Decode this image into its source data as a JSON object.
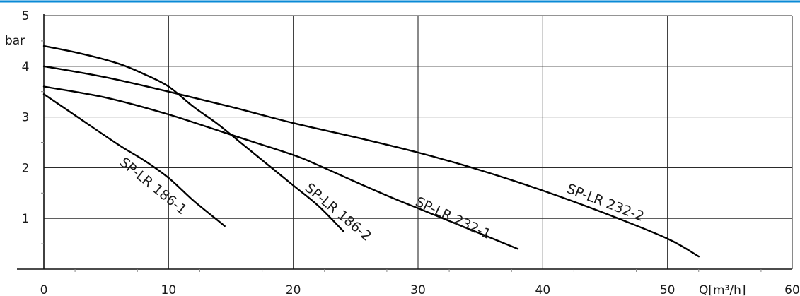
{
  "chart_data": {
    "type": "line",
    "xlabel": "Q[m³/h]",
    "ylabel": "bar",
    "xlim": [
      0,
      60
    ],
    "ylim": [
      0,
      5
    ],
    "x_ticks": [
      "0",
      "10",
      "20",
      "30",
      "40",
      "50",
      "60"
    ],
    "y_ticks": [
      "1",
      "2",
      "3",
      "4",
      "5"
    ],
    "grid": true,
    "accent_color": "#0a8ad6",
    "series": [
      {
        "name": "SP-LR 186-1",
        "x": [
          0,
          3,
          6,
          8,
          10,
          12,
          14,
          14.5
        ],
        "y": [
          3.45,
          2.95,
          2.45,
          2.15,
          1.8,
          1.35,
          0.95,
          0.85
        ]
      },
      {
        "name": "SP-LR 186-2",
        "x": [
          0,
          3,
          6,
          8,
          10,
          12,
          14,
          16,
          18,
          20,
          22,
          24
        ],
        "y": [
          4.4,
          4.25,
          4.05,
          3.85,
          3.6,
          3.2,
          2.85,
          2.45,
          2.05,
          1.65,
          1.25,
          0.75
        ]
      },
      {
        "name": "SP-LR 232-1",
        "x": [
          0,
          5,
          10,
          15,
          20,
          22,
          25,
          28,
          30,
          32,
          34,
          36,
          38
        ],
        "y": [
          3.6,
          3.38,
          3.05,
          2.65,
          2.25,
          2.05,
          1.72,
          1.4,
          1.2,
          1.0,
          0.8,
          0.6,
          0.4
        ]
      },
      {
        "name": "SP-LR 232-2",
        "x": [
          0,
          5,
          10,
          15,
          20,
          25,
          30,
          35,
          40,
          45,
          50,
          52.5
        ],
        "y": [
          4.0,
          3.78,
          3.5,
          3.2,
          2.88,
          2.6,
          2.3,
          1.95,
          1.55,
          1.1,
          0.6,
          0.25
        ]
      }
    ]
  }
}
